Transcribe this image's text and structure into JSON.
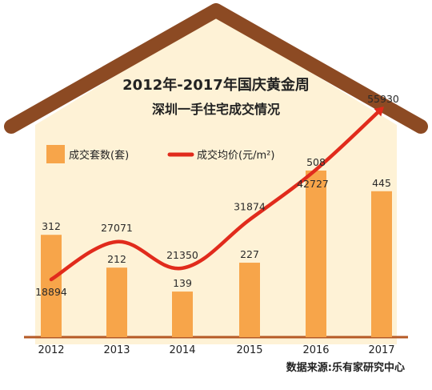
{
  "chart_data": {
    "type": "bar",
    "title": "2012年-2017年国庆黄金周",
    "subtitle": "深圳一手住宅成交情况",
    "categories": [
      "2012",
      "2013",
      "2014",
      "2015",
      "2016",
      "2017"
    ],
    "series": [
      {
        "name": "成交套数(套)",
        "type": "bar",
        "values": [
          312,
          212,
          139,
          227,
          508,
          445
        ],
        "color": "#f7a54a"
      },
      {
        "name": "成交均价(元/m²)",
        "type": "line",
        "values": [
          18894,
          27071,
          21350,
          31874,
          42727,
          55930
        ],
        "color": "#e12b1c"
      }
    ],
    "value_labels": {
      "bars": [
        "312",
        "212",
        "139",
        "227",
        "508",
        "445"
      ],
      "line": [
        "18894",
        "27071",
        "21350",
        "31874",
        "42727",
        "55930"
      ]
    },
    "source": "数据来源:乐有家研究中心",
    "grid": false,
    "legend_position": "top-left"
  },
  "colors": {
    "background": "#fef2d6",
    "roof": "#8c4a23",
    "axis": "#b55a26",
    "bar": "#f7a54a",
    "line": "#e12b1c"
  }
}
